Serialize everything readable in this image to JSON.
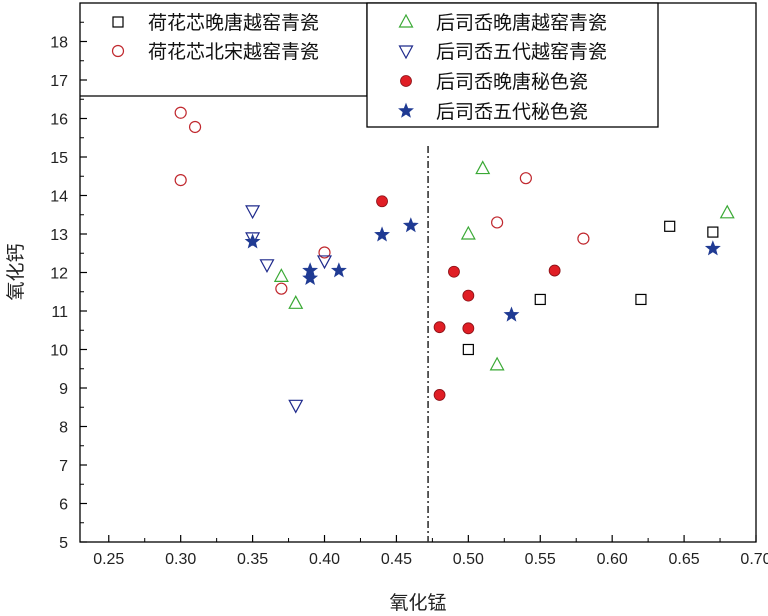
{
  "chart_data": {
    "type": "scatter",
    "xlabel": "氧化锰",
    "ylabel": "氧化钙",
    "xlim": [
      0.23,
      0.7
    ],
    "ylim": [
      5,
      19
    ],
    "x_ticks": [
      "0.25",
      "0.30",
      "0.35",
      "0.40",
      "0.45",
      "0.50",
      "0.55",
      "0.60",
      "0.65",
      "0.70"
    ],
    "x_tick_values": [
      0.25,
      0.3,
      0.35,
      0.4,
      0.45,
      0.5,
      0.55,
      0.6,
      0.65,
      0.7
    ],
    "y_ticks": [
      "5",
      "6",
      "7",
      "8",
      "9",
      "10",
      "11",
      "12",
      "13",
      "14",
      "15",
      "16",
      "17",
      "18"
    ],
    "y_tick_values": [
      5,
      6,
      7,
      8,
      9,
      10,
      11,
      12,
      13,
      14,
      15,
      16,
      17,
      18
    ],
    "reference_line_x": 0.472,
    "series": [
      {
        "name": "荷花芯晚唐越窑青瓷",
        "marker": "square",
        "color": "#000000",
        "points": [
          [
            0.5,
            10.0
          ],
          [
            0.55,
            11.3
          ],
          [
            0.62,
            11.3
          ],
          [
            0.64,
            13.2
          ],
          [
            0.67,
            13.05
          ]
        ]
      },
      {
        "name": "荷花芯北宋越窑青瓷",
        "marker": "circle",
        "color": "#c0282e",
        "points": [
          [
            0.3,
            16.15
          ],
          [
            0.31,
            15.78
          ],
          [
            0.3,
            14.4
          ],
          [
            0.37,
            11.58
          ],
          [
            0.4,
            12.52
          ],
          [
            0.52,
            13.3
          ],
          [
            0.54,
            14.45
          ],
          [
            0.58,
            12.88
          ]
        ]
      },
      {
        "name": "后司岙晚唐越窑青瓷",
        "marker": "triangle-up",
        "color": "#3aa935",
        "points": [
          [
            0.37,
            11.9
          ],
          [
            0.38,
            11.2
          ],
          [
            0.5,
            13.0
          ],
          [
            0.51,
            14.7
          ],
          [
            0.52,
            9.6
          ],
          [
            0.68,
            13.55
          ]
        ]
      },
      {
        "name": "后司岙五代越窑青瓷",
        "marker": "triangle-down",
        "color": "#1f2a8c",
        "points": [
          [
            0.35,
            13.6
          ],
          [
            0.35,
            12.9
          ],
          [
            0.36,
            12.2
          ],
          [
            0.38,
            8.55
          ],
          [
            0.4,
            12.3
          ]
        ]
      },
      {
        "name": "后司岙晚唐秘色瓷",
        "marker": "filled-circle",
        "color": "#e01e25",
        "points": [
          [
            0.44,
            13.85
          ],
          [
            0.48,
            10.58
          ],
          [
            0.48,
            8.82
          ],
          [
            0.49,
            12.02
          ],
          [
            0.5,
            11.4
          ],
          [
            0.5,
            10.55
          ],
          [
            0.56,
            12.05
          ]
        ]
      },
      {
        "name": "后司岙五代秘色瓷",
        "marker": "star",
        "color": "#1f3a93",
        "points": [
          [
            0.35,
            12.8
          ],
          [
            0.39,
            12.05
          ],
          [
            0.39,
            11.85
          ],
          [
            0.41,
            12.05
          ],
          [
            0.44,
            12.98
          ],
          [
            0.46,
            13.22
          ],
          [
            0.53,
            10.9
          ],
          [
            0.67,
            12.62
          ]
        ]
      }
    ]
  }
}
